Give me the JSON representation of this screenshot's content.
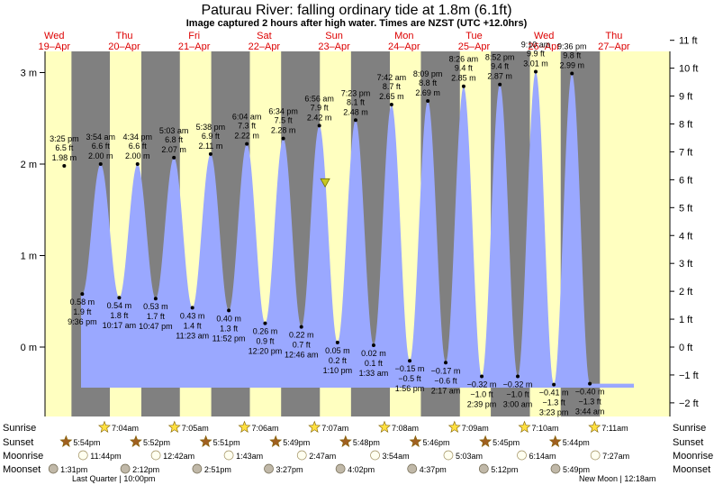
{
  "header": {
    "title": "Paturau River: falling  ordinary tide at 1.8m (6.1ft)",
    "subtitle": "Image captured 2 hours after high water. Times are NZST (UTC +12.0hrs)"
  },
  "days": [
    {
      "dow": "Wed",
      "date": "19–Apr"
    },
    {
      "dow": "Thu",
      "date": "20–Apr"
    },
    {
      "dow": "Fri",
      "date": "21–Apr"
    },
    {
      "dow": "Sat",
      "date": "22–Apr"
    },
    {
      "dow": "Sun",
      "date": "23–Apr"
    },
    {
      "dow": "Mon",
      "date": "24–Apr"
    },
    {
      "dow": "Tue",
      "date": "25–Apr"
    },
    {
      "dow": "Wed",
      "date": "26–Apr"
    },
    {
      "dow": "Thu",
      "date": "27–Apr"
    }
  ],
  "colors": {
    "day": "#ffffc0",
    "night": "#808080",
    "water": "#9aa8ff",
    "day_label": "#dd0000",
    "sun_star": "#ffe040",
    "sunset_star": "#a06020",
    "moonrise": "#fffff0",
    "moonset": "#c0b8a8"
  },
  "chart_data": {
    "type": "area",
    "title": "Paturau River: falling  ordinary tide at 1.8m (6.1ft)",
    "ylabel_left_units": "m",
    "ylabel_right_units": "ft",
    "ylim_m": [
      -0.55,
      3.4
    ],
    "yticks_m": [
      "3 m",
      "2 m",
      "1 m",
      "0 m"
    ],
    "yticks_ft": [
      "11 ft",
      "10 ft",
      "9 ft",
      "8 ft",
      "7 ft",
      "6 ft",
      "5 ft",
      "4 ft",
      "3 ft",
      "2 ft",
      "1 ft",
      "0 ft",
      "−1 ft",
      "−2 ft"
    ],
    "current_level_m": 1.8,
    "current_time": "23-Apr 08:55",
    "tides": [
      {
        "type": "high",
        "t": "19-Apr 15:25",
        "h": 1.98,
        "lines": [
          "3:25 pm",
          "6.5 ft",
          "1.98 m"
        ]
      },
      {
        "type": "low",
        "t": "19-Apr 21:36",
        "h": 0.58,
        "lines": [
          "0.58 m",
          "1.9 ft",
          "9:36 pm"
        ]
      },
      {
        "type": "high",
        "t": "20-Apr 03:54",
        "h": 2.0,
        "lines": [
          "3:54 am",
          "6.6 ft",
          "2.00 m"
        ]
      },
      {
        "type": "low",
        "t": "20-Apr 10:17",
        "h": 0.54,
        "lines": [
          "0.54 m",
          "1.8 ft",
          "10:17 am"
        ]
      },
      {
        "type": "high",
        "t": "20-Apr 16:34",
        "h": 2.0,
        "lines": [
          "4:34 pm",
          "6.6 ft",
          "2.00 m"
        ]
      },
      {
        "type": "low",
        "t": "20-Apr 22:47",
        "h": 0.53,
        "lines": [
          "0.53 m",
          "1.7 ft",
          "10:47 pm"
        ]
      },
      {
        "type": "high",
        "t": "21-Apr 05:03",
        "h": 2.07,
        "lines": [
          "5:03 am",
          "6.8 ft",
          "2.07 m"
        ]
      },
      {
        "type": "low",
        "t": "21-Apr 11:23",
        "h": 0.43,
        "lines": [
          "0.43 m",
          "1.4 ft",
          "11:23 am"
        ]
      },
      {
        "type": "high",
        "t": "21-Apr 17:38",
        "h": 2.11,
        "lines": [
          "5:38 pm",
          "6.9 ft",
          "2.11 m"
        ]
      },
      {
        "type": "low",
        "t": "21-Apr 23:52",
        "h": 0.4,
        "lines": [
          "0.40 m",
          "1.3 ft",
          "11:52 pm"
        ]
      },
      {
        "type": "high",
        "t": "22-Apr 06:04",
        "h": 2.22,
        "lines": [
          "6:04 am",
          "7.3 ft",
          "2.22 m"
        ]
      },
      {
        "type": "low",
        "t": "22-Apr 12:20",
        "h": 0.26,
        "lines": [
          "0.26 m",
          "0.9 ft",
          "12:20 pm"
        ]
      },
      {
        "type": "high",
        "t": "22-Apr 18:34",
        "h": 2.28,
        "lines": [
          "6:34 pm",
          "7.5 ft",
          "2.28 m"
        ]
      },
      {
        "type": "low",
        "t": "23-Apr 00:46",
        "h": 0.22,
        "lines": [
          "0.22 m",
          "0.7 ft",
          "12:46 am"
        ]
      },
      {
        "type": "high",
        "t": "23-Apr 06:56",
        "h": 2.42,
        "lines": [
          "6:56 am",
          "7.9 ft",
          "2.42 m"
        ]
      },
      {
        "type": "low",
        "t": "23-Apr 13:10",
        "h": 0.05,
        "lines": [
          "0.05 m",
          "0.2 ft",
          "1:10 pm"
        ]
      },
      {
        "type": "high",
        "t": "23-Apr 19:23",
        "h": 2.48,
        "lines": [
          "7:23 pm",
          "8.1 ft",
          "2.48 m"
        ]
      },
      {
        "type": "low",
        "t": "24-Apr 01:33",
        "h": 0.02,
        "lines": [
          "0.02 m",
          "0.1 ft",
          "1:33 am"
        ]
      },
      {
        "type": "high",
        "t": "24-Apr 07:42",
        "h": 2.65,
        "lines": [
          "7:42 am",
          "8.7 ft",
          "2.65 m"
        ]
      },
      {
        "type": "low",
        "t": "24-Apr 13:56",
        "h": -0.15,
        "lines": [
          "−0.15 m",
          "−0.5 ft",
          "1:56 pm"
        ]
      },
      {
        "type": "high",
        "t": "24-Apr 20:09",
        "h": 2.69,
        "lines": [
          "8:09 pm",
          "8.8 ft",
          "2.69 m"
        ]
      },
      {
        "type": "low",
        "t": "25-Apr 02:17",
        "h": -0.17,
        "lines": [
          "−0.17 m",
          "−0.6 ft",
          "2:17 am"
        ]
      },
      {
        "type": "high",
        "t": "25-Apr 08:26",
        "h": 2.85,
        "lines": [
          "8:26 am",
          "9.4 ft",
          "2.85 m"
        ]
      },
      {
        "type": "low",
        "t": "25-Apr 14:39",
        "h": -0.32,
        "lines": [
          "−0.32 m",
          "−1.0 ft",
          "2:39 pm"
        ]
      },
      {
        "type": "high",
        "t": "25-Apr 20:52",
        "h": 2.87,
        "lines": [
          "8:52 pm",
          "9.4 ft",
          "2.87 m"
        ]
      },
      {
        "type": "low",
        "t": "26-Apr 03:00",
        "h": -0.32,
        "lines": [
          "−0.32 m",
          "−1.0 ft",
          "3:00 am"
        ]
      },
      {
        "type": "high",
        "t": "26-Apr 09:10",
        "h": 3.01,
        "lines": [
          "9:10 am",
          "9.9 ft",
          "3.01 m"
        ]
      },
      {
        "type": "low",
        "t": "26-Apr 15:23",
        "h": -0.41,
        "lines": [
          "−0.41 m",
          "−1.3 ft",
          "3:23 pm"
        ]
      },
      {
        "type": "high",
        "t": "26-Apr 21:36",
        "h": 2.99,
        "lines": [
          "9:36 pm",
          "9.8 ft",
          "2.99 m"
        ]
      },
      {
        "type": "low",
        "t": "27-Apr 03:44",
        "h": -0.4,
        "lines": [
          "−0.40 m",
          "−1.3 ft",
          "3:44 am"
        ]
      }
    ],
    "sunrise": [
      "20-Apr 07:04",
      "21-Apr 07:05",
      "22-Apr 07:06",
      "23-Apr 07:07",
      "24-Apr 07:08",
      "25-Apr 07:09",
      "26-Apr 07:10",
      "27-Apr 07:11"
    ],
    "sunrise_labels": [
      "7:04am",
      "7:05am",
      "7:06am",
      "7:07am",
      "7:08am",
      "7:09am",
      "7:10am",
      "7:11am"
    ],
    "sunset": [
      "19-Apr 17:54",
      "20-Apr 17:52",
      "21-Apr 17:51",
      "22-Apr 17:49",
      "23-Apr 17:48",
      "24-Apr 17:46",
      "25-Apr 17:45",
      "26-Apr 17:44"
    ],
    "sunset_labels": [
      "5:54pm",
      "5:52pm",
      "5:51pm",
      "5:49pm",
      "5:48pm",
      "5:46pm",
      "5:45pm",
      "5:44pm"
    ],
    "moonrise": [
      "19-Apr 23:44",
      "21-Apr 00:42",
      "22-Apr 01:43",
      "23-Apr 02:47",
      "24-Apr 03:54",
      "25-Apr 05:03",
      "26-Apr 06:14",
      "27-Apr 07:27"
    ],
    "moonrise_labels": [
      "11:44pm",
      "12:42am",
      "1:43am",
      "2:47am",
      "3:54am",
      "5:03am",
      "6:14am",
      "7:27am"
    ],
    "moonset": [
      "19-Apr 13:31",
      "20-Apr 14:12",
      "21-Apr 14:51",
      "22-Apr 15:27",
      "23-Apr 16:02",
      "24-Apr 16:37",
      "25-Apr 17:12",
      "26-Apr 17:49"
    ],
    "moonset_labels": [
      "1:31pm",
      "2:12pm",
      "2:51pm",
      "3:27pm",
      "4:02pm",
      "4:37pm",
      "5:12pm",
      "5:49pm"
    ]
  },
  "legend": {
    "sunrise": "Sunrise",
    "sunset": "Sunset",
    "moonrise": "Moonrise",
    "moonset": "Moonset"
  },
  "moon_phases": {
    "last_quarter": "Last Quarter | 10:00pm",
    "new_moon": "New Moon | 12:18am"
  }
}
